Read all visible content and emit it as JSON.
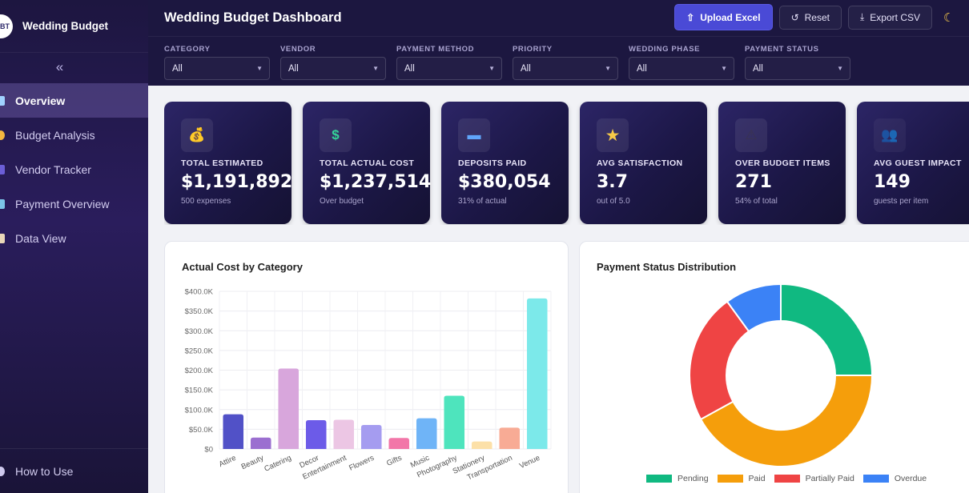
{
  "brand": {
    "logo_text": "BT",
    "name": "Wedding Budget"
  },
  "sidebar": {
    "collapse_icon": "double-chevron-left-icon",
    "items": [
      {
        "label": "Overview",
        "active": true,
        "icon_color": "#a0d2ff"
      },
      {
        "label": "Budget Analysis",
        "active": false,
        "icon_color": "#f4b63f"
      },
      {
        "label": "Vendor Tracker",
        "active": false,
        "icon_color": "#6b5ed6"
      },
      {
        "label": "Payment Overview",
        "active": false,
        "icon_color": "#7cc4e8"
      },
      {
        "label": "Data View",
        "active": false,
        "icon_color": "#e9d7b8"
      }
    ],
    "footer_label": "How to Use"
  },
  "header": {
    "title": "Wedding Budget Dashboard",
    "upload_label": "Upload Excel",
    "reset_label": "Reset",
    "export_label": "Export CSV"
  },
  "filters": [
    {
      "label": "CATEGORY",
      "value": "All"
    },
    {
      "label": "VENDOR",
      "value": "All"
    },
    {
      "label": "PAYMENT METHOD",
      "value": "All"
    },
    {
      "label": "PRIORITY",
      "value": "All"
    },
    {
      "label": "WEDDING PHASE",
      "value": "All"
    },
    {
      "label": "PAYMENT STATUS",
      "value": "All"
    }
  ],
  "kpis": [
    {
      "icon": "💰",
      "icon_name": "money-bag-icon",
      "label": "TOTAL ESTIMATED",
      "value": "$1,191,892",
      "sub": "500 expenses"
    },
    {
      "icon": "$",
      "icon_name": "dollar-icon",
      "label": "TOTAL ACTUAL COST",
      "value": "$1,237,514",
      "sub": "Over budget"
    },
    {
      "icon": "▬",
      "icon_name": "credit-card-icon",
      "label": "DEPOSITS PAID",
      "value": "$380,054",
      "sub": "31% of actual"
    },
    {
      "icon": "★",
      "icon_name": "star-icon",
      "label": "AVG SATISFACTION",
      "value": "3.7",
      "sub": "out of 5.0"
    },
    {
      "icon": "⚠",
      "icon_name": "warning-icon",
      "label": "OVER BUDGET ITEMS",
      "value": "271",
      "sub": "54% of total"
    },
    {
      "icon": "👥",
      "icon_name": "guests-icon",
      "label": "AVG GUEST IMPACT",
      "value": "149",
      "sub": "guests per item"
    }
  ],
  "bar_panel": {
    "title": "Actual Cost by Category"
  },
  "donut_panel": {
    "title": "Payment Status Distribution"
  },
  "chart_data": [
    {
      "type": "bar",
      "title": "Actual Cost by Category",
      "categories": [
        "Attire",
        "Beauty",
        "Catering",
        "Decor",
        "Entertainment",
        "Flowers",
        "Gifts",
        "Music",
        "Photography",
        "Stationery",
        "Transportation",
        "Venue"
      ],
      "values": [
        88000,
        29000,
        204000,
        73000,
        74000,
        61000,
        28000,
        78000,
        135000,
        19000,
        54000,
        382000
      ],
      "colors": [
        "#5151c7",
        "#9b6fd0",
        "#d8a6dc",
        "#6c5be8",
        "#ecc6e4",
        "#a59cf0",
        "#f276a8",
        "#6fb4f7",
        "#4ee4bd",
        "#fce0a8",
        "#f8ab95",
        "#7ce9ea"
      ],
      "ylim": [
        0,
        400000
      ],
      "yticks": [
        "$0",
        "$50.0K",
        "$100.0K",
        "$150.0K",
        "$200.0K",
        "$250.0K",
        "$300.0K",
        "$350.0K",
        "$400.0K"
      ],
      "grid": true
    },
    {
      "type": "pie",
      "title": "Payment Status Distribution",
      "labels": [
        "Pending",
        "Paid",
        "Partially Paid",
        "Overdue"
      ],
      "values": [
        25,
        42,
        23,
        10
      ],
      "colors": [
        "#10b981",
        "#f59e0b",
        "#ef4444",
        "#3b82f6"
      ],
      "donut": true,
      "legend": "bottom"
    }
  ]
}
